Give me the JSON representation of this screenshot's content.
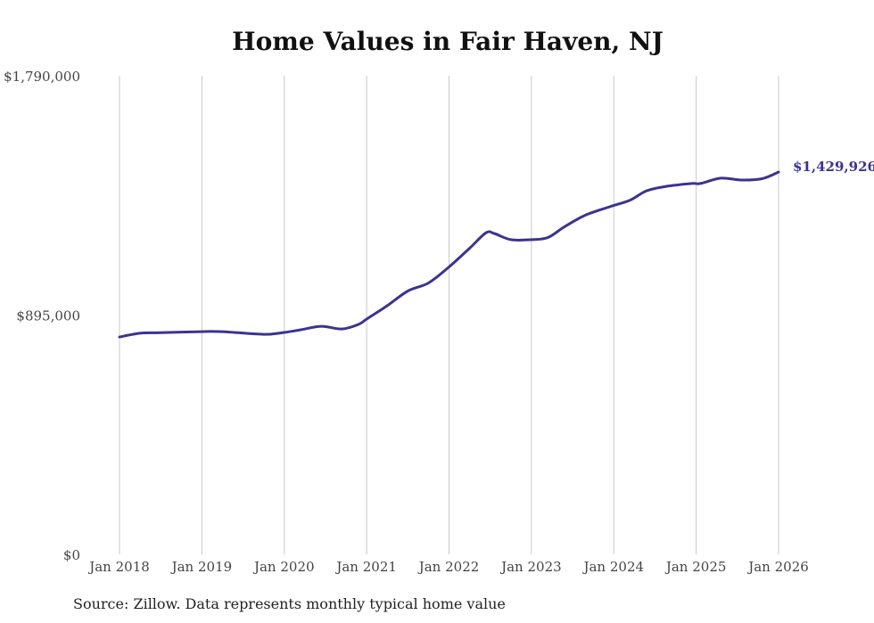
{
  "chart_data": {
    "type": "line",
    "title": "Home Values in Fair Haven, NJ",
    "xlabel": "",
    "ylabel": "",
    "ylim": [
      0,
      1790000
    ],
    "y_ticks": [
      {
        "value": 0,
        "label": "$0"
      },
      {
        "value": 895000,
        "label": "$895,000"
      },
      {
        "value": 1790000,
        "label": "$1,790,000"
      }
    ],
    "x_ticks": [
      "Jan 2018",
      "Jan 2019",
      "Jan 2020",
      "Jan 2021",
      "Jan 2022",
      "Jan 2023",
      "Jan 2024",
      "Jan 2025",
      "Jan 2026"
    ],
    "x_range_years": [
      2018,
      2026
    ],
    "grid": "vertical",
    "series": [
      {
        "name": "Typical home value",
        "color": "#3b3391",
        "points": [
          [
            2018.0,
            813000
          ],
          [
            2018.25,
            827000
          ],
          [
            2018.5,
            829000
          ],
          [
            2019.0,
            833000
          ],
          [
            2019.25,
            833000
          ],
          [
            2019.75,
            823000
          ],
          [
            2020.0,
            830000
          ],
          [
            2020.2,
            840000
          ],
          [
            2020.45,
            853000
          ],
          [
            2020.7,
            843000
          ],
          [
            2020.9,
            860000
          ],
          [
            2021.0,
            880000
          ],
          [
            2021.25,
            930000
          ],
          [
            2021.5,
            985000
          ],
          [
            2021.75,
            1015000
          ],
          [
            2022.0,
            1075000
          ],
          [
            2022.25,
            1145000
          ],
          [
            2022.45,
            1203000
          ],
          [
            2022.55,
            1200000
          ],
          [
            2022.75,
            1177000
          ],
          [
            2023.0,
            1177000
          ],
          [
            2023.2,
            1185000
          ],
          [
            2023.4,
            1225000
          ],
          [
            2023.65,
            1268000
          ],
          [
            2023.95,
            1300000
          ],
          [
            2024.2,
            1325000
          ],
          [
            2024.4,
            1360000
          ],
          [
            2024.65,
            1377000
          ],
          [
            2024.95,
            1387000
          ],
          [
            2025.05,
            1387000
          ],
          [
            2025.3,
            1407000
          ],
          [
            2025.55,
            1400000
          ],
          [
            2025.8,
            1405000
          ],
          [
            2026.0,
            1429926
          ]
        ]
      }
    ],
    "end_label": "$1,429,926",
    "source": "Source: Zillow. Data represents monthly typical home value"
  }
}
